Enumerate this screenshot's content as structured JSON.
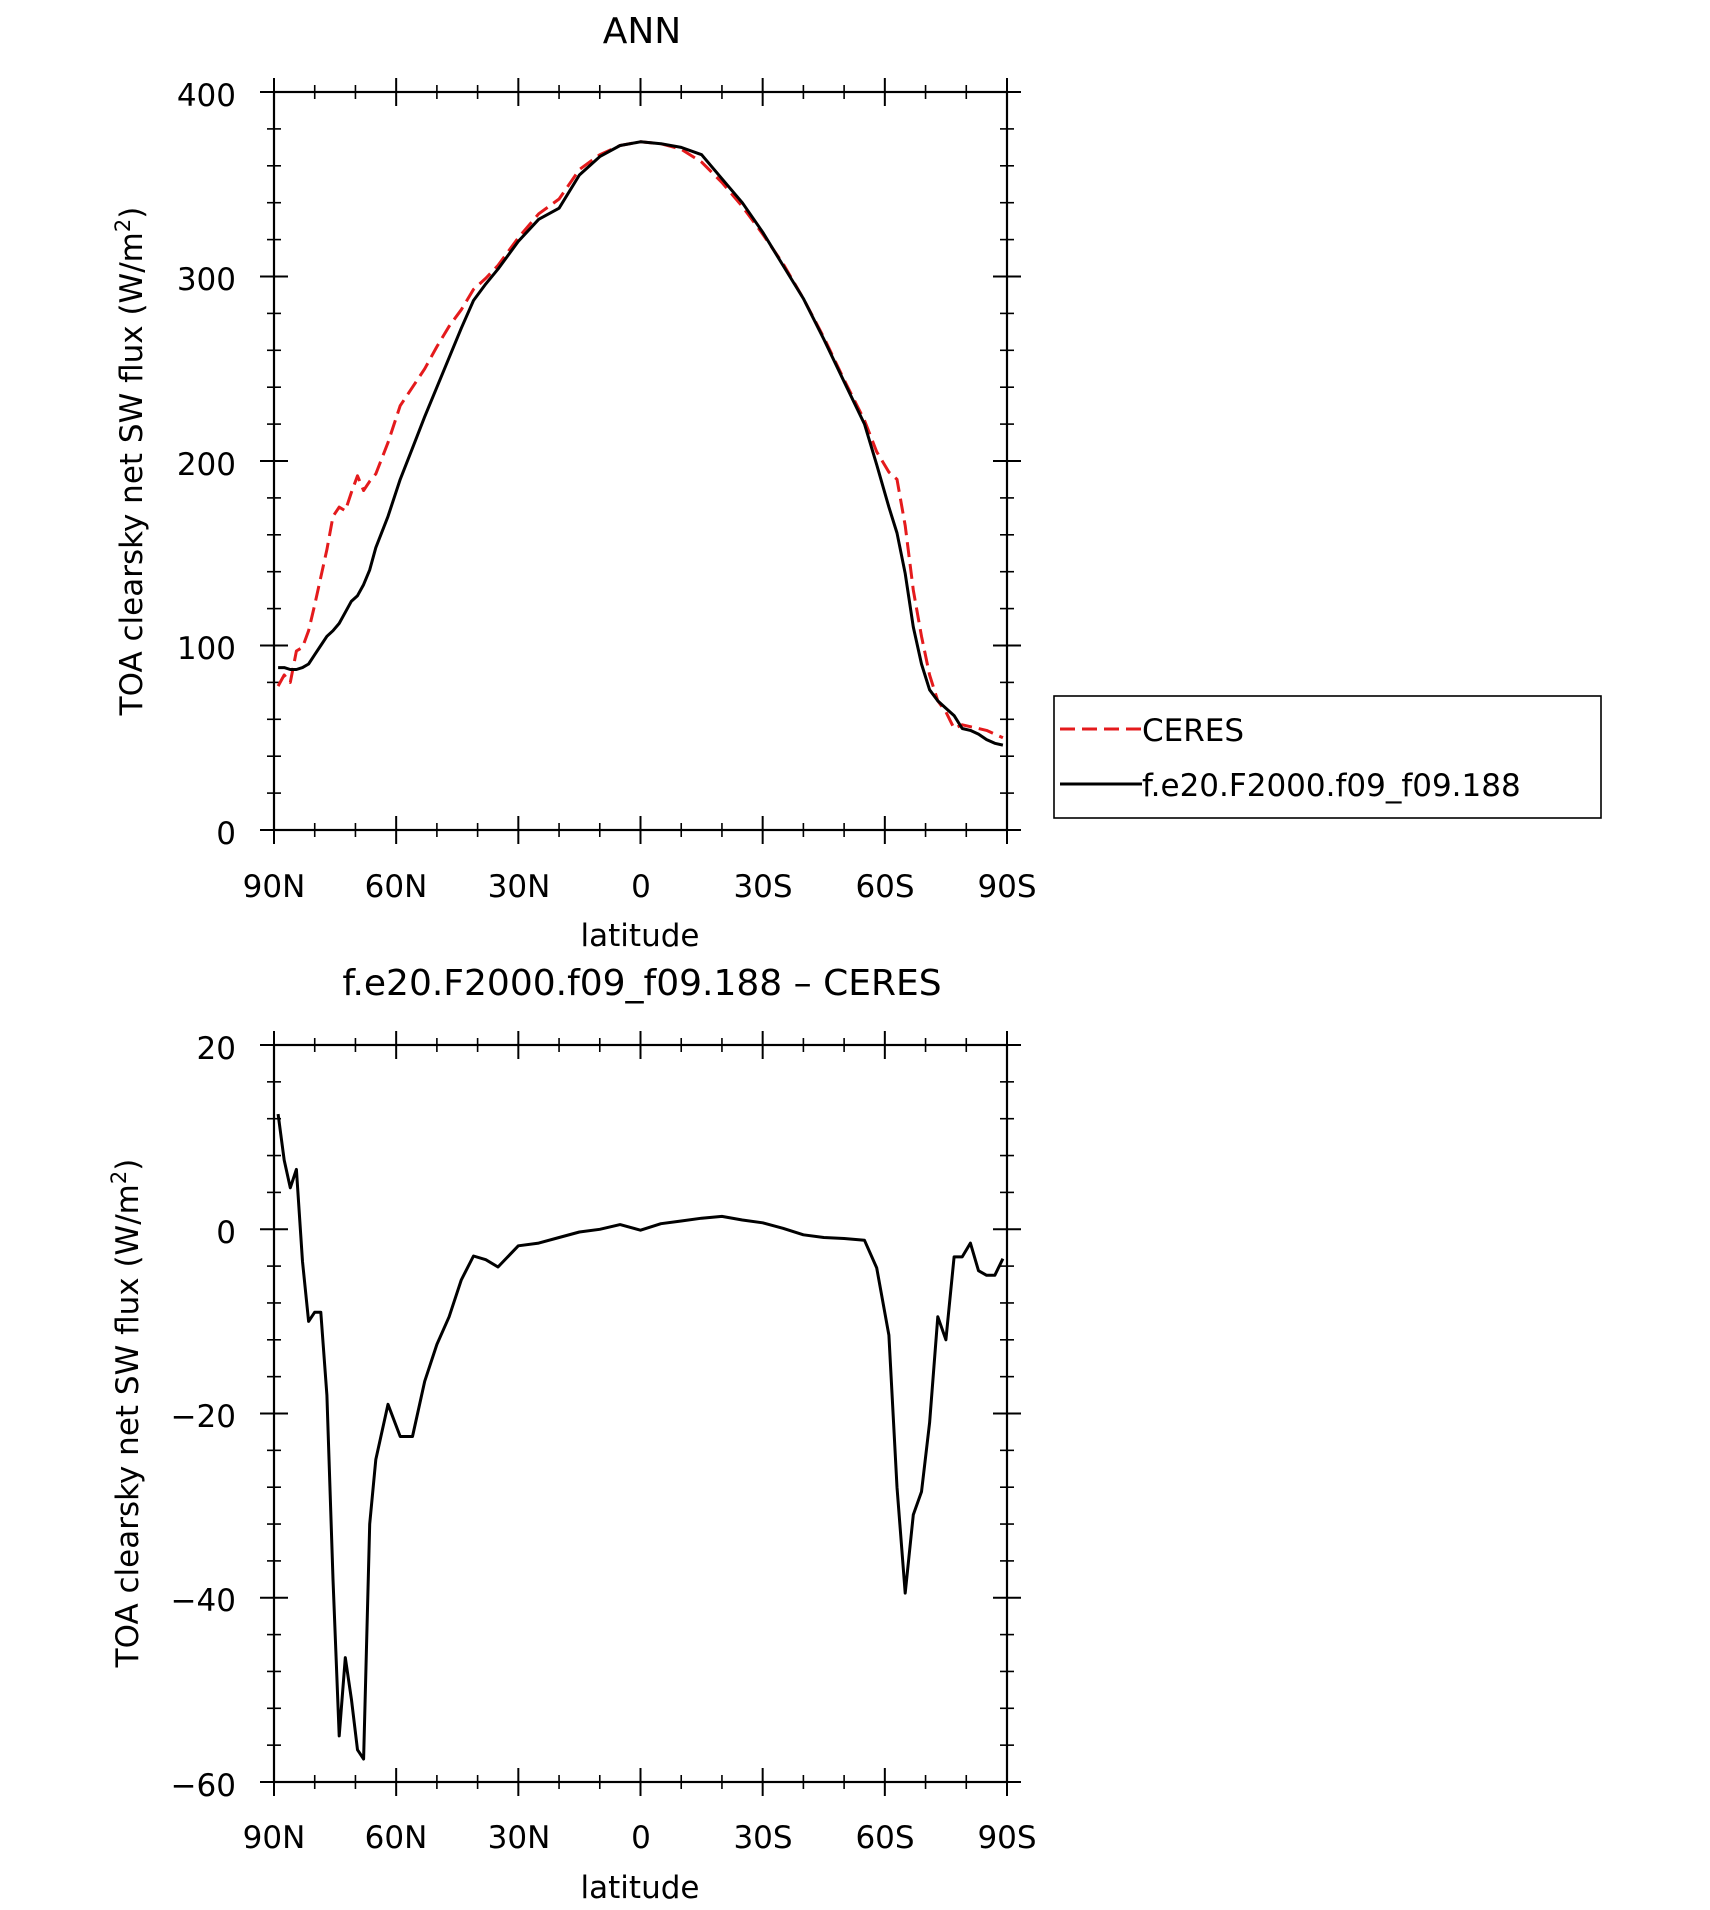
{
  "chart_data": [
    {
      "type": "line",
      "title": "ANN",
      "xlabel": "latitude",
      "ylabel": "TOA clearsky net SW flux (W/m",
      "ylabel_sup": "2",
      "ylabel_end": ")",
      "xlim": [
        90,
        -90
      ],
      "ylim": [
        0,
        400
      ],
      "x_ticks": [
        90,
        60,
        30,
        0,
        -30,
        -60,
        -90
      ],
      "x_tick_labels": [
        "90N",
        "60N",
        "30N",
        "0",
        "30S",
        "60S",
        "90S"
      ],
      "y_ticks": [
        0,
        100,
        200,
        300,
        400
      ],
      "y_tick_labels": [
        "0",
        "100",
        "200",
        "300",
        "400"
      ],
      "grid": false,
      "legend_position": "right",
      "series": [
        {
          "name": "CERES",
          "color": "#e41a1c",
          "dash": "dashed",
          "x": [
            89,
            87.5,
            86,
            84.5,
            83,
            81.5,
            80,
            78.5,
            77,
            75.5,
            74,
            72.5,
            71,
            69.5,
            68,
            66.5,
            65,
            62,
            59,
            56,
            53,
            50,
            47,
            44,
            41,
            38,
            35,
            30,
            25,
            20,
            15,
            10,
            5,
            0,
            -5,
            -10,
            -15,
            -20,
            -25,
            -30,
            -35,
            -40,
            -45,
            -50,
            -55,
            -58,
            -61,
            -63,
            -65,
            -67,
            -69,
            -71,
            -73,
            -75,
            -77,
            -79,
            -81,
            -83,
            -85,
            -87,
            -89
          ],
          "y": [
            78,
            84,
            80,
            97,
            99,
            108,
            122,
            137,
            152,
            170,
            175,
            173,
            183,
            192,
            184,
            189,
            193,
            210,
            230,
            240,
            250,
            262,
            273,
            282,
            293,
            299,
            306,
            321,
            334,
            342,
            358,
            366,
            371,
            373,
            372,
            369,
            362,
            351,
            338,
            323,
            307,
            288,
            267,
            244,
            222,
            205,
            194,
            190,
            165,
            130,
            105,
            84,
            70,
            64,
            55,
            57,
            56,
            55,
            54,
            52,
            50
          ]
        },
        {
          "name": "f.e20.F2000.f09_f09.188",
          "color": "#000000",
          "dash": "solid",
          "x": [
            89,
            87.5,
            86,
            84.5,
            83,
            81.5,
            80,
            78.5,
            77,
            75.5,
            74,
            72.5,
            71,
            69.5,
            68,
            66.5,
            65,
            62,
            59,
            56,
            53,
            50,
            47,
            44,
            41,
            38,
            35,
            30,
            25,
            20,
            15,
            10,
            5,
            0,
            -5,
            -10,
            -15,
            -20,
            -25,
            -30,
            -35,
            -40,
            -45,
            -50,
            -55,
            -58,
            -61,
            -63,
            -65,
            -67,
            -69,
            -71,
            -73,
            -75,
            -77,
            -79,
            -81,
            -83,
            -85,
            -87,
            -89
          ],
          "y": [
            88,
            88,
            87,
            87,
            88,
            90,
            95,
            100,
            105,
            108,
            112,
            118,
            124,
            127,
            133,
            141,
            153,
            170,
            190,
            207,
            224,
            240,
            256,
            272,
            287,
            296,
            304,
            319,
            331,
            337,
            355,
            365,
            371,
            373,
            372,
            370,
            366,
            353,
            340,
            324,
            306,
            288,
            266,
            243,
            220,
            198,
            175,
            161,
            139,
            110,
            90,
            76,
            70,
            66,
            62,
            55,
            54,
            52,
            49,
            47,
            46
          ]
        }
      ]
    },
    {
      "type": "line",
      "title": "f.e20.F2000.f09_f09.188 – CERES",
      "xlabel": "latitude",
      "ylabel": "TOA clearsky net SW flux (W/m",
      "ylabel_sup": "2",
      "ylabel_end": ")",
      "xlim": [
        90,
        -90
      ],
      "ylim": [
        -60,
        20
      ],
      "x_ticks": [
        90,
        60,
        30,
        0,
        -30,
        -60,
        -90
      ],
      "x_tick_labels": [
        "90N",
        "60N",
        "30N",
        "0",
        "30S",
        "60S",
        "90S"
      ],
      "y_ticks": [
        -60,
        -40,
        -20,
        0,
        20
      ],
      "y_tick_labels": [
        "−60",
        "−40",
        "−20",
        "0",
        "20"
      ],
      "grid": false,
      "series": [
        {
          "color": "#000000",
          "dash": "solid",
          "x": [
            89,
            87.5,
            86,
            84.5,
            83,
            81.5,
            80,
            78.5,
            77,
            75.5,
            74,
            72.5,
            71,
            69.5,
            68,
            66.5,
            65,
            62,
            59,
            56,
            53,
            50,
            47,
            44,
            41,
            38,
            35,
            30,
            25,
            20,
            15,
            10,
            5,
            0,
            -5,
            -10,
            -15,
            -20,
            -25,
            -30,
            -35,
            -40,
            -45,
            -50,
            -55,
            -58,
            -61,
            -63,
            -65,
            -67,
            -69,
            -71,
            -73,
            -75,
            -77,
            -79,
            -81,
            -83,
            -85,
            -87,
            -89
          ],
          "y": [
            12.5,
            7.5,
            4.5,
            6.5,
            -3.5,
            -10,
            -9,
            -9,
            -18,
            -38,
            -55,
            -46.5,
            -51,
            -56.5,
            -57.5,
            -32,
            -25,
            -19,
            -22.5,
            -22.5,
            -16.5,
            -12.5,
            -9.5,
            -5.5,
            -2.9,
            -3.3,
            -4.1,
            -1.8,
            -1.5,
            -0.9,
            -0.3,
            0.0,
            0.5,
            -0.1,
            0.6,
            0.9,
            1.2,
            1.4,
            1.0,
            0.7,
            0.1,
            -0.6,
            -0.9,
            -1.0,
            -1.2,
            -4.2,
            -11.5,
            -28,
            -39.5,
            -31,
            -28.5,
            -21,
            -9.5,
            -12,
            -3,
            -3,
            -1.5,
            -4.5,
            -5,
            -5,
            -3.2
          ]
        }
      ]
    }
  ]
}
